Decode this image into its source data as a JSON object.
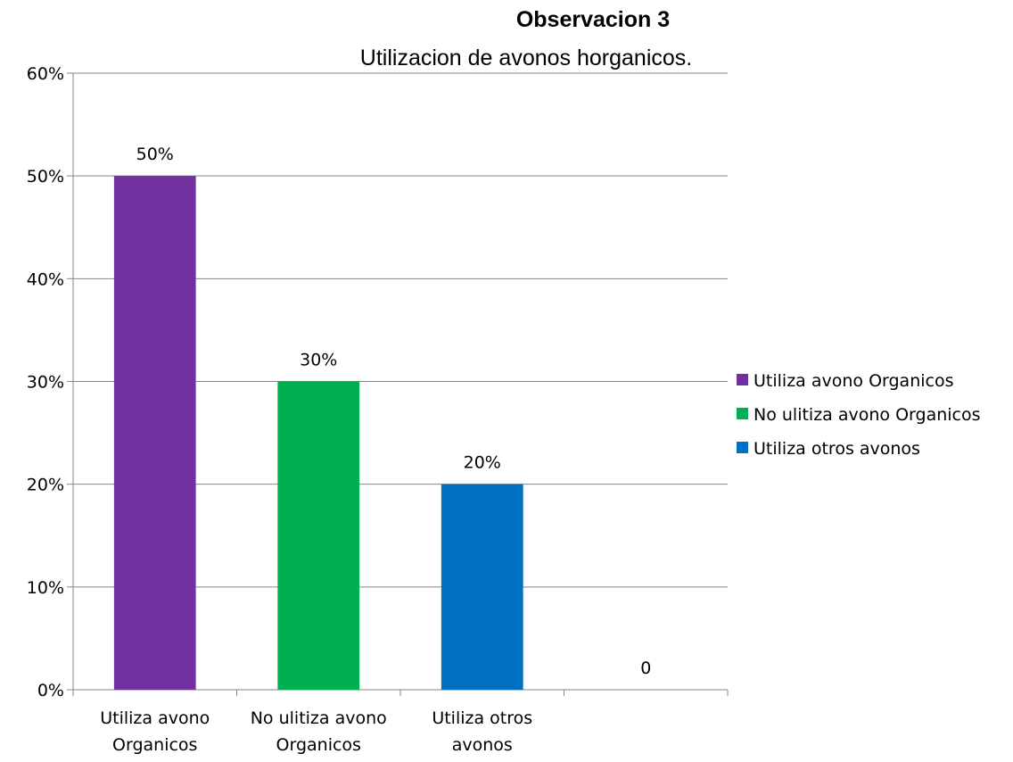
{
  "chart_data": {
    "type": "bar",
    "title": "Observacion 3",
    "subtitle": "Utilizacion de avonos horganicos.",
    "categories": [
      [
        "Utiliza avono",
        "Organicos"
      ],
      [
        "No ulitiza avono",
        "Organicos"
      ],
      [
        "Utiliza otros",
        "avonos"
      ],
      [
        ""
      ]
    ],
    "values": [
      0.5,
      0.3,
      0.2,
      0
    ],
    "data_labels": [
      "50%",
      "30%",
      "20%",
      "0"
    ],
    "colors": [
      "#7030a0",
      "#00b050",
      "#0070c0",
      "#ffffff"
    ],
    "ylim": [
      0,
      0.6
    ],
    "yticks": [
      0,
      0.1,
      0.2,
      0.3,
      0.4,
      0.5,
      0.6
    ],
    "ytick_labels": [
      "0%",
      "10%",
      "20%",
      "30%",
      "40%",
      "50%",
      "60%"
    ],
    "grid": true,
    "legend_position": "right",
    "legend": [
      {
        "label": "Utiliza avono Organicos",
        "color": "#7030a0"
      },
      {
        "label": "No ulitiza avono Organicos",
        "color": "#00b050"
      },
      {
        "label": "Utiliza otros avonos",
        "color": "#0070c0"
      }
    ]
  }
}
